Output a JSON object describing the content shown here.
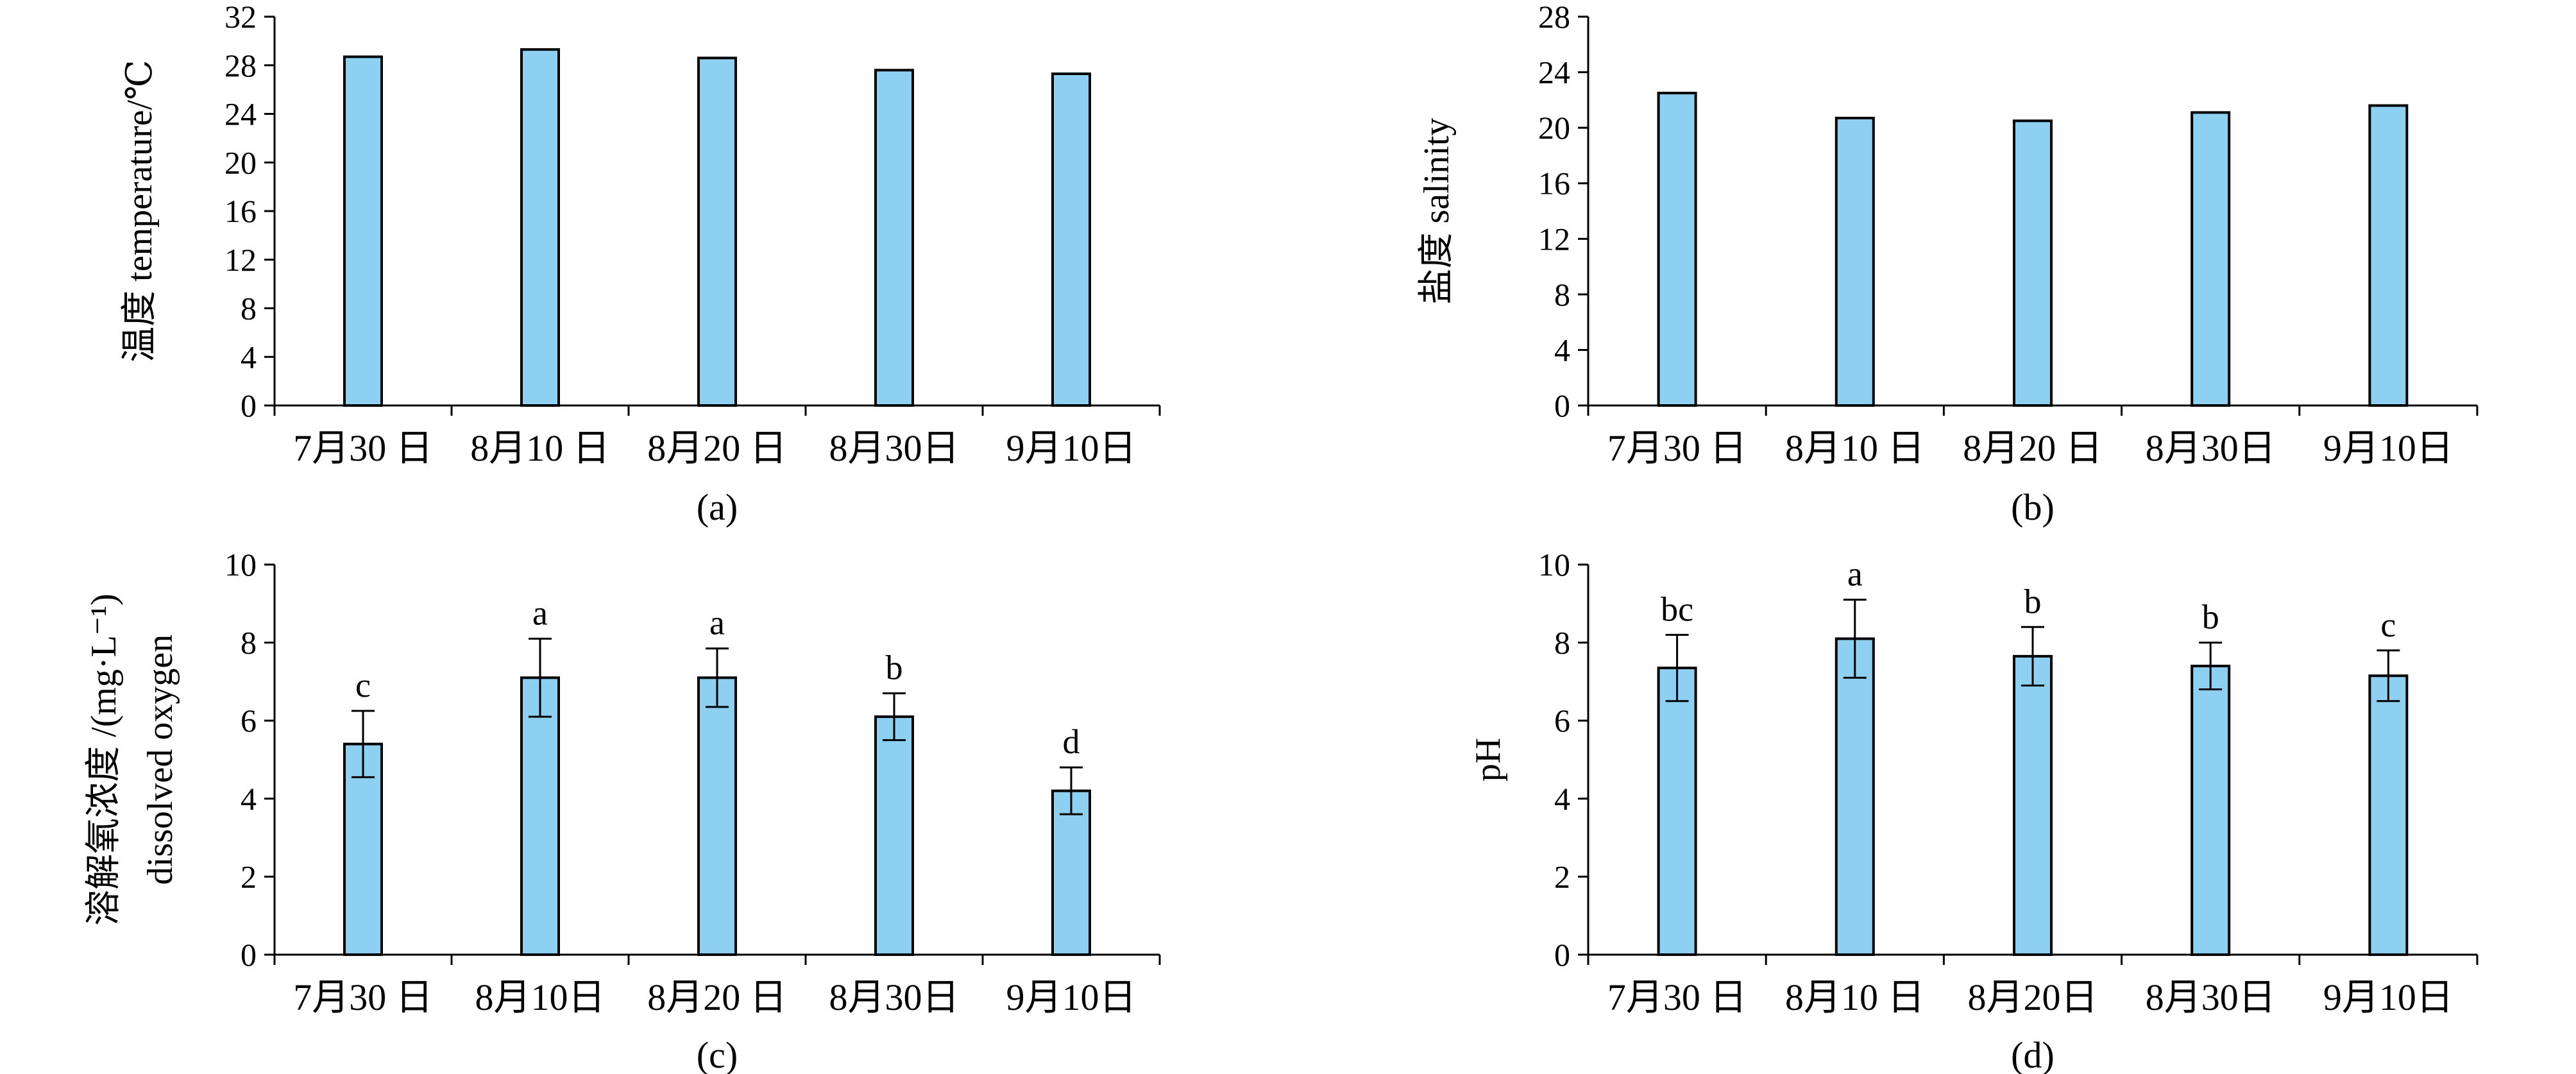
{
  "colors": {
    "bar_fill": "#8ED0F2",
    "stroke": "#000000",
    "background": "#ffffff"
  },
  "chart_data": [
    {
      "panel": "(a)",
      "type": "bar",
      "categories": [
        "7月30 日",
        "8月10 日",
        "8月20 日",
        "8月30日",
        "9月10日"
      ],
      "series": [
        {
          "values": [
            28.7,
            29.3,
            28.6,
            27.6,
            27.3
          ]
        }
      ],
      "ylabel": "温度 temperature/℃",
      "xlabel": "",
      "ylim": [
        0,
        32
      ],
      "yticks": [
        0,
        4,
        8,
        12,
        16,
        20,
        24,
        28,
        32
      ],
      "grid": false
    },
    {
      "panel": "(b)",
      "type": "bar",
      "categories": [
        "7月30 日",
        "8月10 日",
        "8月20 日",
        "8月30日",
        "9月10日"
      ],
      "series": [
        {
          "values": [
            22.5,
            20.7,
            20.5,
            21.1,
            21.6
          ]
        }
      ],
      "ylabel": "盐度 salinity",
      "xlabel": "",
      "ylim": [
        0,
        28
      ],
      "yticks": [
        0,
        4,
        8,
        12,
        16,
        20,
        24,
        28
      ],
      "grid": false
    },
    {
      "panel": "(c)",
      "type": "bar",
      "categories": [
        "7月30 日",
        "8月10日",
        "8月20 日",
        "8月30日",
        "9月10日"
      ],
      "series": [
        {
          "values": [
            5.4,
            7.1,
            7.1,
            6.1,
            4.2
          ],
          "errors": [
            0.85,
            1.0,
            0.75,
            0.6,
            0.6
          ],
          "labels": [
            "c",
            "a",
            "a",
            "b",
            "d"
          ]
        }
      ],
      "ylabel": "溶解氧浓度 /(mg·L⁻¹)",
      "ylabel2": "dissolved oxygen",
      "xlabel": "",
      "ylim": [
        0,
        10
      ],
      "yticks": [
        0,
        2,
        4,
        6,
        8,
        10
      ],
      "grid": false
    },
    {
      "panel": "(d)",
      "type": "bar",
      "categories": [
        "7月30 日",
        "8月10 日",
        "8月20日",
        "8月30日",
        "9月10日"
      ],
      "series": [
        {
          "values": [
            7.35,
            8.1,
            7.65,
            7.4,
            7.15
          ],
          "errors": [
            0.85,
            1.0,
            0.75,
            0.6,
            0.65
          ],
          "labels": [
            "bc",
            "a",
            "b",
            "b",
            "c"
          ]
        }
      ],
      "ylabel": "pH",
      "xlabel": "",
      "ylim": [
        0,
        10
      ],
      "yticks": [
        0,
        2,
        4,
        6,
        8,
        10
      ],
      "grid": false
    }
  ]
}
